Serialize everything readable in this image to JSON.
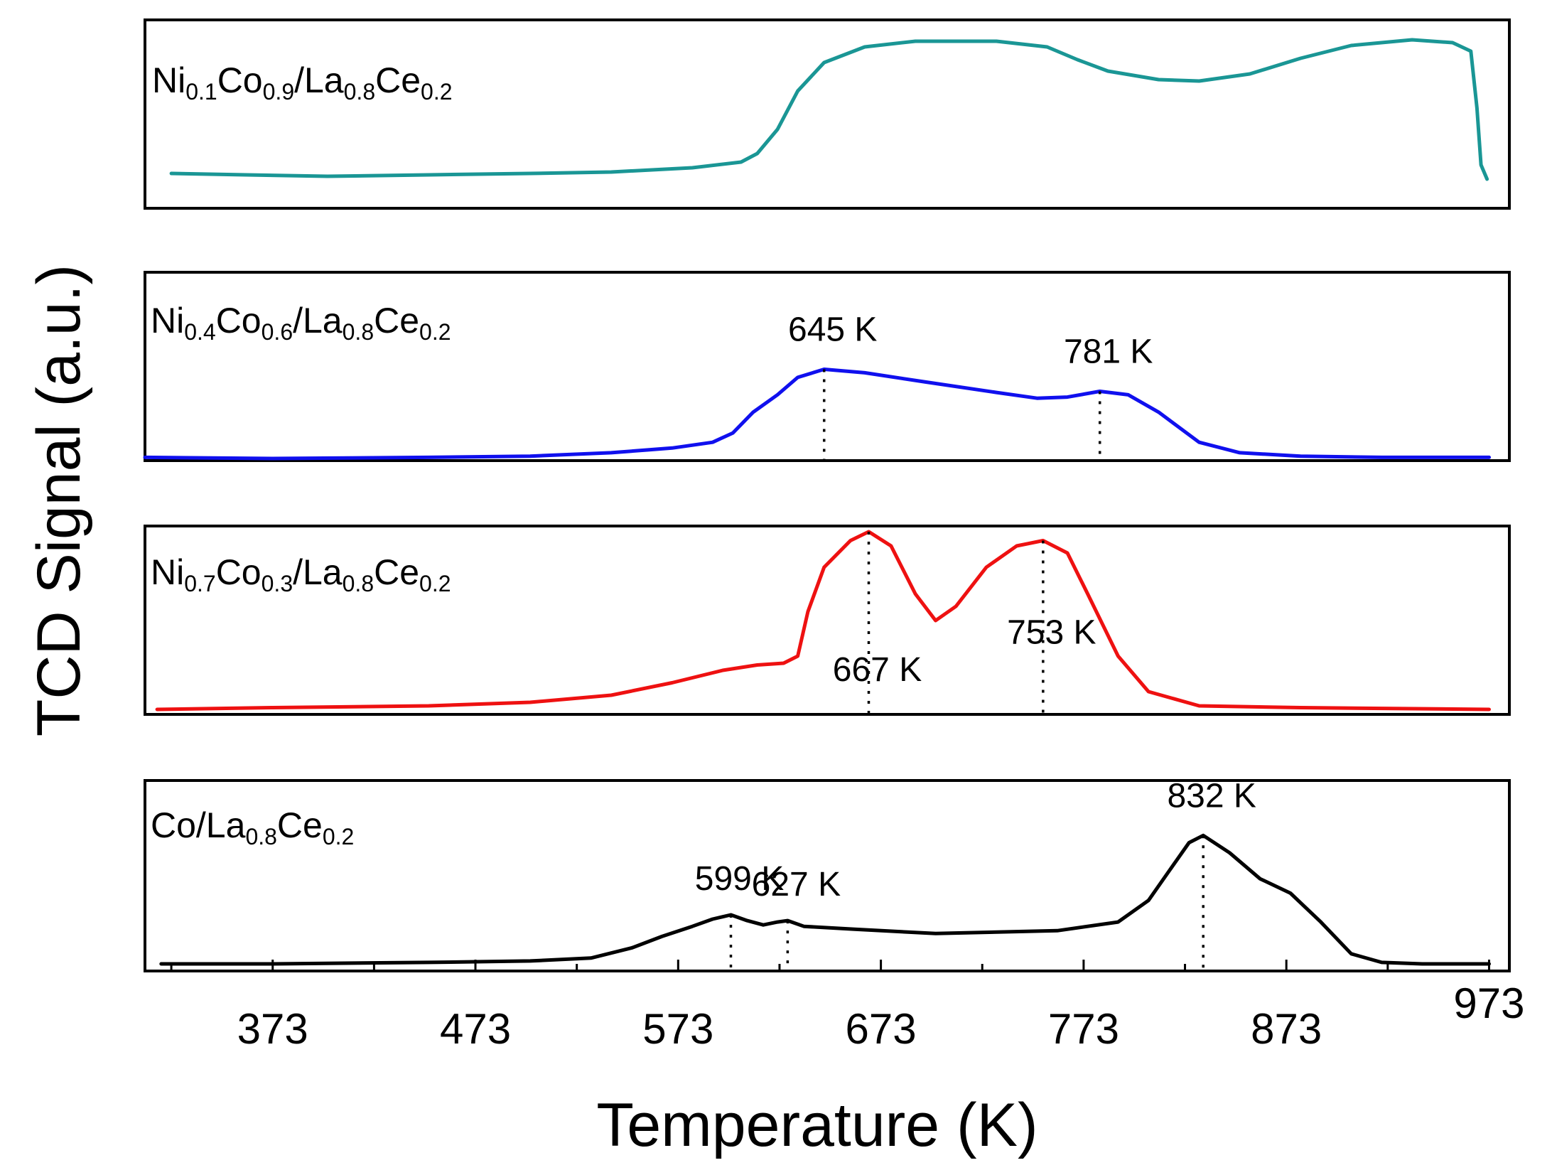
{
  "chart_data": {
    "type": "line",
    "xlabel": "Temperature (K)",
    "ylabel": "TCD Signal (a.u.)",
    "xlim": [
      310,
      983
    ],
    "xticks": [
      373,
      473,
      573,
      673,
      773,
      873,
      973
    ],
    "tick_labels": [
      "373",
      "473",
      "573",
      "673",
      "773",
      "873",
      "973"
    ],
    "series": [
      {
        "id": "ni01",
        "name": "Ni0.1Co0.9/La0.8Ce0.2",
        "label_parts": [
          {
            "t": "Ni",
            "sub": false
          },
          {
            "t": "0.1",
            "sub": true
          },
          {
            "t": "Co",
            "sub": false
          },
          {
            "t": "0.9",
            "sub": true
          },
          {
            "t": "/La",
            "sub": false
          },
          {
            "t": "0.8",
            "sub": true
          },
          {
            "t": "Ce",
            "sub": false
          },
          {
            "t": "0.2",
            "sub": true
          }
        ],
        "color": "#1a9695",
        "points": [
          [
            323,
            0.04
          ],
          [
            360,
            0.03
          ],
          [
            400,
            0.02
          ],
          [
            450,
            0.03
          ],
          [
            500,
            0.04
          ],
          [
            540,
            0.05
          ],
          [
            580,
            0.08
          ],
          [
            604,
            0.12
          ],
          [
            612,
            0.18
          ],
          [
            622,
            0.35
          ],
          [
            632,
            0.62
          ],
          [
            645,
            0.82
          ],
          [
            665,
            0.93
          ],
          [
            690,
            0.97
          ],
          [
            730,
            0.97
          ],
          [
            755,
            0.93
          ],
          [
            770,
            0.84
          ],
          [
            785,
            0.76
          ],
          [
            810,
            0.7
          ],
          [
            830,
            0.69
          ],
          [
            855,
            0.74
          ],
          [
            880,
            0.85
          ],
          [
            905,
            0.94
          ],
          [
            935,
            0.98
          ],
          [
            955,
            0.96
          ],
          [
            964,
            0.9
          ],
          [
            967,
            0.5
          ],
          [
            969,
            0.1
          ],
          [
            972,
            0.0
          ]
        ],
        "peaks": []
      },
      {
        "id": "ni04",
        "name": "Ni0.4Co0.6/La0.8Ce0.2",
        "label_parts": [
          {
            "t": "Ni",
            "sub": false
          },
          {
            "t": "0.4",
            "sub": true
          },
          {
            "t": "Co",
            "sub": false
          },
          {
            "t": "0.6",
            "sub": true
          },
          {
            "t": "/La",
            "sub": false
          },
          {
            "t": "0.8",
            "sub": true
          },
          {
            "t": "Ce",
            "sub": false
          },
          {
            "t": "0.2",
            "sub": true
          }
        ],
        "color": "#1010ee",
        "points": [
          [
            310,
            0.01
          ],
          [
            373,
            0.0
          ],
          [
            450,
            0.01
          ],
          [
            500,
            0.02
          ],
          [
            540,
            0.05
          ],
          [
            570,
            0.09
          ],
          [
            590,
            0.14
          ],
          [
            600,
            0.22
          ],
          [
            610,
            0.4
          ],
          [
            622,
            0.55
          ],
          [
            632,
            0.7
          ],
          [
            645,
            0.77
          ],
          [
            665,
            0.74
          ],
          [
            695,
            0.66
          ],
          [
            730,
            0.57
          ],
          [
            750,
            0.52
          ],
          [
            765,
            0.53
          ],
          [
            781,
            0.58
          ],
          [
            795,
            0.55
          ],
          [
            810,
            0.4
          ],
          [
            830,
            0.14
          ],
          [
            850,
            0.05
          ],
          [
            880,
            0.02
          ],
          [
            920,
            0.01
          ],
          [
            973,
            0.01
          ]
        ],
        "peaks": [
          {
            "x": 645,
            "label": "645 K"
          },
          {
            "x": 781,
            "label": "781 K"
          }
        ]
      },
      {
        "id": "ni07",
        "name": "Ni0.7Co0.3/La0.8Ce0.2",
        "label_parts": [
          {
            "t": "Ni",
            "sub": false
          },
          {
            "t": "0.7",
            "sub": true
          },
          {
            "t": "Co",
            "sub": false
          },
          {
            "t": "0.3",
            "sub": true
          },
          {
            "t": "/La",
            "sub": false
          },
          {
            "t": "0.8",
            "sub": true
          },
          {
            "t": "Ce",
            "sub": false
          },
          {
            "t": "0.2",
            "sub": true
          }
        ],
        "color": "#ee1111",
        "points": [
          [
            316,
            0.0
          ],
          [
            373,
            0.01
          ],
          [
            450,
            0.02
          ],
          [
            500,
            0.04
          ],
          [
            540,
            0.08
          ],
          [
            570,
            0.15
          ],
          [
            595,
            0.22
          ],
          [
            612,
            0.25
          ],
          [
            625,
            0.26
          ],
          [
            632,
            0.3
          ],
          [
            637,
            0.55
          ],
          [
            645,
            0.8
          ],
          [
            658,
            0.95
          ],
          [
            667,
            1.0
          ],
          [
            678,
            0.92
          ],
          [
            690,
            0.65
          ],
          [
            700,
            0.5
          ],
          [
            710,
            0.58
          ],
          [
            725,
            0.8
          ],
          [
            740,
            0.92
          ],
          [
            753,
            0.95
          ],
          [
            765,
            0.88
          ],
          [
            775,
            0.65
          ],
          [
            790,
            0.3
          ],
          [
            805,
            0.1
          ],
          [
            830,
            0.02
          ],
          [
            880,
            0.01
          ],
          [
            973,
            0.0
          ]
        ],
        "peaks": [
          {
            "x": 667,
            "label": "667 K"
          },
          {
            "x": 753,
            "label": "753 K"
          }
        ]
      },
      {
        "id": "co",
        "name": "Co/La0.8Ce0.2",
        "label_parts": [
          {
            "t": "Co/La",
            "sub": false
          },
          {
            "t": "0.8",
            "sub": true
          },
          {
            "t": "Ce",
            "sub": false
          },
          {
            "t": "0.2",
            "sub": true
          }
        ],
        "color": "#000000",
        "points": [
          [
            318,
            0.01
          ],
          [
            373,
            0.01
          ],
          [
            450,
            0.02
          ],
          [
            500,
            0.03
          ],
          [
            530,
            0.05
          ],
          [
            550,
            0.12
          ],
          [
            565,
            0.2
          ],
          [
            580,
            0.27
          ],
          [
            590,
            0.32
          ],
          [
            599,
            0.35
          ],
          [
            607,
            0.31
          ],
          [
            615,
            0.28
          ],
          [
            622,
            0.3
          ],
          [
            627,
            0.31
          ],
          [
            635,
            0.27
          ],
          [
            660,
            0.25
          ],
          [
            700,
            0.22
          ],
          [
            760,
            0.24
          ],
          [
            790,
            0.3
          ],
          [
            805,
            0.45
          ],
          [
            815,
            0.65
          ],
          [
            825,
            0.85
          ],
          [
            832,
            0.9
          ],
          [
            845,
            0.78
          ],
          [
            860,
            0.6
          ],
          [
            875,
            0.5
          ],
          [
            890,
            0.3
          ],
          [
            905,
            0.08
          ],
          [
            920,
            0.02
          ],
          [
            940,
            0.01
          ],
          [
            973,
            0.01
          ]
        ],
        "peaks": [
          {
            "x": 599,
            "label": "599 K"
          },
          {
            "x": 627,
            "label": "627 K"
          },
          {
            "x": 832,
            "label": "832 K"
          }
        ]
      }
    ]
  }
}
